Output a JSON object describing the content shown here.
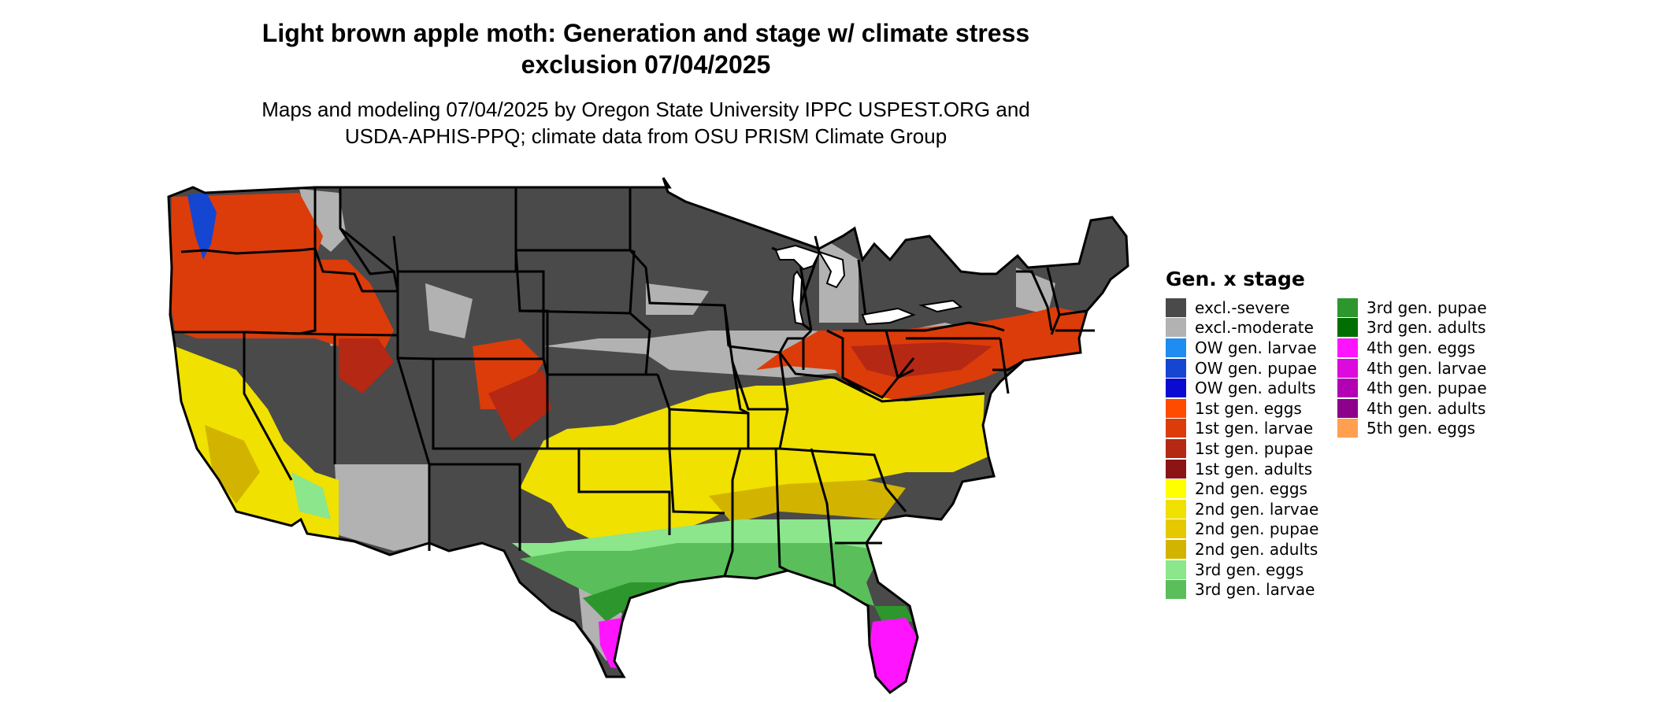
{
  "title_line1": "Light brown apple moth: Generation and stage w/ climate stress",
  "title_line2": "exclusion 07/04/2025",
  "subtitle_line1": "Maps and modeling 07/04/2025 by Oregon State University IPPC USPEST.ORG and",
  "subtitle_line2": "USDA-APHIS-PPQ; climate data from OSU PRISM Climate Group",
  "legend": {
    "title": "Gen. x stage",
    "items": [
      {
        "label": "excl.-severe",
        "color": "#4a4a4a"
      },
      {
        "label": "excl.-moderate",
        "color": "#b2b2b2"
      },
      {
        "label": "OW gen. larvae",
        "color": "#1e8cf0"
      },
      {
        "label": "OW gen. pupae",
        "color": "#1446d2"
      },
      {
        "label": "OW gen. adults",
        "color": "#0a0ad2"
      },
      {
        "label": "1st gen. eggs",
        "color": "#ff4b00"
      },
      {
        "label": "1st gen. larvae",
        "color": "#dc3c0a"
      },
      {
        "label": "1st gen. pupae",
        "color": "#b42814"
      },
      {
        "label": "1st gen. adults",
        "color": "#8c1414"
      },
      {
        "label": "2nd gen. eggs",
        "color": "#ffff00"
      },
      {
        "label": "2nd gen. larvae",
        "color": "#f0e100"
      },
      {
        "label": "2nd gen. pupae",
        "color": "#e6c800"
      },
      {
        "label": "2nd gen. adults",
        "color": "#d2b400"
      },
      {
        "label": "3rd gen. eggs",
        "color": "#8ce68c"
      },
      {
        "label": "3rd gen. larvae",
        "color": "#5abe5a"
      },
      {
        "label": "3rd gen. pupae",
        "color": "#2d962d"
      },
      {
        "label": "3rd gen. adults",
        "color": "#006e00"
      },
      {
        "label": "4th gen. eggs",
        "color": "#ff14ff"
      },
      {
        "label": "4th gen. larvae",
        "color": "#dc0adc"
      },
      {
        "label": "4th gen. pupae",
        "color": "#b400b4"
      },
      {
        "label": "4th gen. adults",
        "color": "#8c008c"
      },
      {
        "label": "5th gen. eggs",
        "color": "#ffa050"
      }
    ]
  },
  "map_colors": {
    "border": "#000000",
    "water": "#ffffff"
  }
}
